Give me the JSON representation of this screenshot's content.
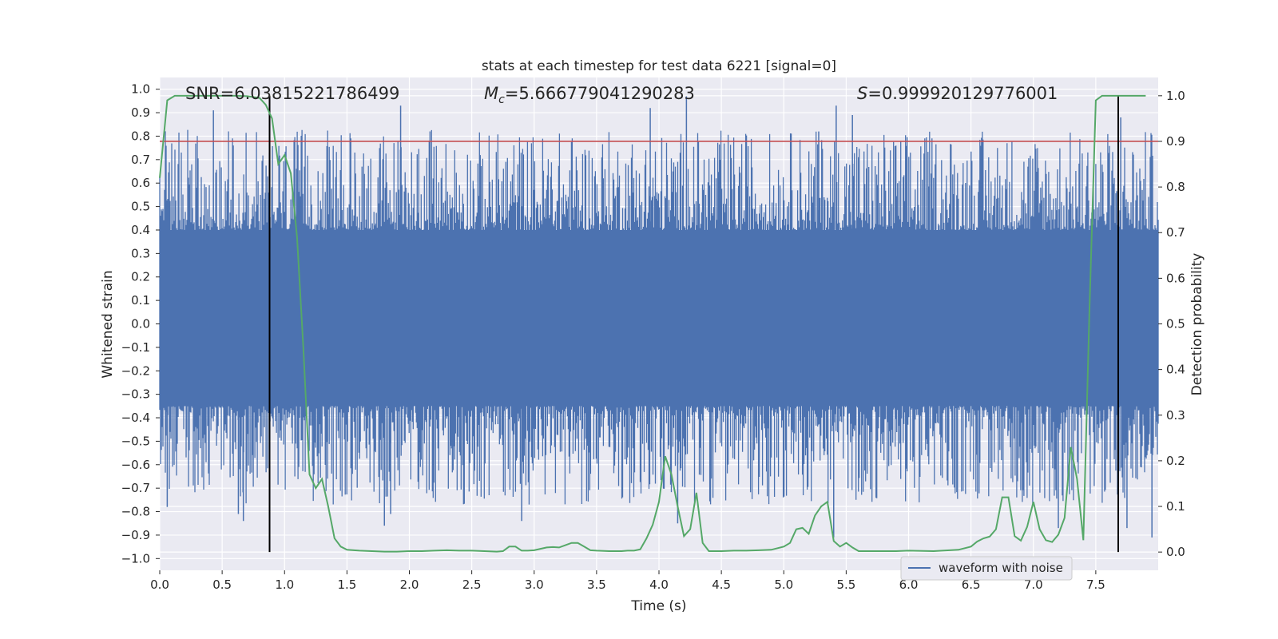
{
  "chart_data": {
    "type": "line",
    "title": "stats at each timestep for test data 6221 [signal=0]",
    "xlabel": "Time (s)",
    "ylabel_left": "Whitened strain",
    "ylabel_right": "Detection probability",
    "xlim": [
      0.0,
      8.0
    ],
    "ylim_left": [
      -1.05,
      1.05
    ],
    "ylim_right": [
      -0.04,
      1.04
    ],
    "x_ticks": [
      0.0,
      0.5,
      1.0,
      1.5,
      2.0,
      2.5,
      3.0,
      3.5,
      4.0,
      4.5,
      5.0,
      5.5,
      6.0,
      6.5,
      7.0,
      7.5
    ],
    "x_tick_labels": [
      "0.0",
      "0.5",
      "1.0",
      "1.5",
      "2.0",
      "2.5",
      "3.0",
      "3.5",
      "4.0",
      "4.5",
      "5.0",
      "5.5",
      "6.0",
      "6.5",
      "7.0",
      "7.5"
    ],
    "y_left_ticks": [
      1.0,
      0.9,
      0.8,
      0.7,
      0.6,
      0.5,
      0.4,
      0.3,
      0.2,
      0.1,
      0.0,
      -0.1,
      -0.2,
      -0.3,
      -0.4,
      -0.5,
      -0.6,
      -0.7,
      -0.8,
      -0.9,
      -1.0
    ],
    "y_left_tick_labels": [
      "1.0",
      "0.9",
      "0.8",
      "0.7",
      "0.6",
      "0.5",
      "0.4",
      "0.3",
      "0.2",
      "0.1",
      "0.0",
      "−0.1",
      "−0.2",
      "−0.3",
      "−0.4",
      "−0.5",
      "−0.6",
      "−0.7",
      "−0.8",
      "−0.9",
      "−1.0"
    ],
    "y_right_ticks": [
      1.0,
      0.9,
      0.8,
      0.7,
      0.6,
      0.5,
      0.4,
      0.3,
      0.2,
      0.1,
      0.0
    ],
    "y_right_tick_labels": [
      "1.0",
      "0.9",
      "0.8",
      "0.7",
      "0.6",
      "0.5",
      "0.4",
      "0.3",
      "0.2",
      "0.1",
      "0.0"
    ],
    "grid": true,
    "annotations": {
      "snr": "SNR=6.03815221786499",
      "mc_symbol": "M",
      "mc_sub": "c",
      "mc_value": "=5.666779041290283",
      "s_symbol": "S",
      "s_value": "=0.999920129776001"
    },
    "threshold_line": {
      "axis": "right",
      "y": 0.9,
      "color": "#c44e52"
    },
    "vertical_markers": {
      "x": [
        0.88,
        7.68
      ],
      "ymin_right": 0.0,
      "ymax_right": 1.0,
      "color": "#000000"
    },
    "legend": {
      "position": "lower-right",
      "entries": [
        "waveform with noise"
      ]
    },
    "waveform": {
      "name": "waveform with noise",
      "color": "#4c72b0",
      "axis": "left",
      "x_range": [
        0.0,
        8.0
      ],
      "envelope_range": [
        -0.91,
        0.97
      ],
      "dense_band": [
        -0.35,
        0.4
      ],
      "peak_samples": [
        {
          "x": 0.43,
          "y": 0.91
        },
        {
          "x": 0.88,
          "y": 0.85
        },
        {
          "x": 1.93,
          "y": 0.93
        },
        {
          "x": 3.93,
          "y": 0.92
        },
        {
          "x": 4.22,
          "y": 0.97
        },
        {
          "x": 5.28,
          "y": 0.82
        },
        {
          "x": 5.42,
          "y": 0.93
        },
        {
          "x": 5.55,
          "y": 0.89
        },
        {
          "x": 7.7,
          "y": 0.88
        },
        {
          "x": 0.06,
          "y": -0.78
        },
        {
          "x": 0.63,
          "y": -0.81
        },
        {
          "x": 0.67,
          "y": -0.84
        },
        {
          "x": 1.8,
          "y": -0.86
        },
        {
          "x": 1.85,
          "y": -0.81
        },
        {
          "x": 2.9,
          "y": -0.84
        },
        {
          "x": 4.15,
          "y": -0.85
        },
        {
          "x": 5.4,
          "y": -0.91
        },
        {
          "x": 7.2,
          "y": -0.87
        },
        {
          "x": 7.75,
          "y": -0.87
        },
        {
          "x": 7.95,
          "y": -0.91
        }
      ]
    },
    "detection_probability": {
      "color": "#55a868",
      "axis": "right",
      "x": [
        0.0,
        0.06,
        0.12,
        0.2,
        0.3,
        0.4,
        0.5,
        0.6,
        0.7,
        0.8,
        0.85,
        0.9,
        0.95,
        1.0,
        1.05,
        1.1,
        1.15,
        1.2,
        1.25,
        1.3,
        1.35,
        1.4,
        1.45,
        1.5,
        1.6,
        1.7,
        1.8,
        1.9,
        2.0,
        2.1,
        2.2,
        2.3,
        2.4,
        2.5,
        2.6,
        2.7,
        2.75,
        2.8,
        2.85,
        2.9,
        2.95,
        3.0,
        3.1,
        3.15,
        3.2,
        3.25,
        3.3,
        3.35,
        3.4,
        3.45,
        3.5,
        3.6,
        3.7,
        3.75,
        3.8,
        3.85,
        3.9,
        3.95,
        4.0,
        4.05,
        4.1,
        4.15,
        4.2,
        4.25,
        4.3,
        4.35,
        4.4,
        4.45,
        4.5,
        4.6,
        4.7,
        4.8,
        4.9,
        5.0,
        5.05,
        5.1,
        5.15,
        5.2,
        5.25,
        5.3,
        5.35,
        5.4,
        5.45,
        5.5,
        5.55,
        5.6,
        5.65,
        5.7,
        5.8,
        5.9,
        6.0,
        6.2,
        6.4,
        6.5,
        6.55,
        6.6,
        6.65,
        6.7,
        6.75,
        6.8,
        6.85,
        6.9,
        6.95,
        7.0,
        7.05,
        7.1,
        7.15,
        7.2,
        7.25,
        7.3,
        7.35,
        7.4,
        7.45,
        7.5,
        7.55,
        7.6,
        7.65,
        7.7,
        7.75,
        7.8,
        7.85,
        7.9
      ],
      "y": [
        0.82,
        0.99,
        1.0,
        1.0,
        1.0,
        1.0,
        1.0,
        1.0,
        0.999,
        0.995,
        0.98,
        0.95,
        0.85,
        0.87,
        0.83,
        0.69,
        0.45,
        0.17,
        0.14,
        0.16,
        0.1,
        0.03,
        0.012,
        0.005,
        0.003,
        0.002,
        0.001,
        0.001,
        0.002,
        0.002,
        0.003,
        0.004,
        0.003,
        0.003,
        0.002,
        0.001,
        0.002,
        0.012,
        0.012,
        0.003,
        0.003,
        0.004,
        0.01,
        0.011,
        0.01,
        0.015,
        0.02,
        0.02,
        0.012,
        0.004,
        0.003,
        0.002,
        0.002,
        0.003,
        0.003,
        0.006,
        0.03,
        0.06,
        0.11,
        0.21,
        0.17,
        0.1,
        0.035,
        0.05,
        0.13,
        0.02,
        0.002,
        0.002,
        0.002,
        0.003,
        0.003,
        0.004,
        0.005,
        0.012,
        0.02,
        0.05,
        0.053,
        0.04,
        0.08,
        0.1,
        0.11,
        0.024,
        0.012,
        0.02,
        0.01,
        0.002,
        0.002,
        0.002,
        0.002,
        0.002,
        0.003,
        0.002,
        0.005,
        0.012,
        0.023,
        0.03,
        0.034,
        0.05,
        0.12,
        0.12,
        0.035,
        0.025,
        0.055,
        0.11,
        0.05,
        0.026,
        0.022,
        0.038,
        0.075,
        0.23,
        0.16,
        0.026,
        0.54,
        0.99,
        1.0,
        1.0,
        1.0,
        1.0,
        1.0,
        1.0,
        1.0,
        1.0
      ]
    }
  }
}
